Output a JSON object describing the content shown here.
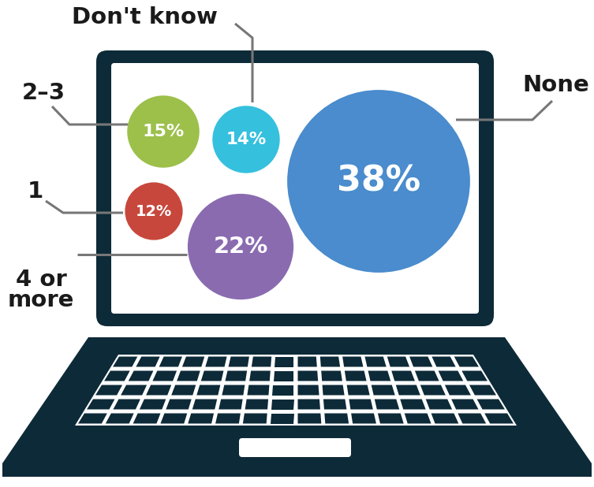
{
  "chart_data": {
    "type": "bubble",
    "categories": [
      "None",
      "Don't know",
      "2–3",
      "1",
      "4 or more"
    ],
    "values": [
      38,
      14,
      15,
      12,
      22
    ],
    "value_labels": [
      "38%",
      "14%",
      "15%",
      "12%",
      "22%"
    ],
    "colors": [
      "#4a8ccd",
      "#35c0de",
      "#9cc04a",
      "#c8473c",
      "#8a6bb0"
    ],
    "data_labels": true,
    "tick_labels": false
  }
}
